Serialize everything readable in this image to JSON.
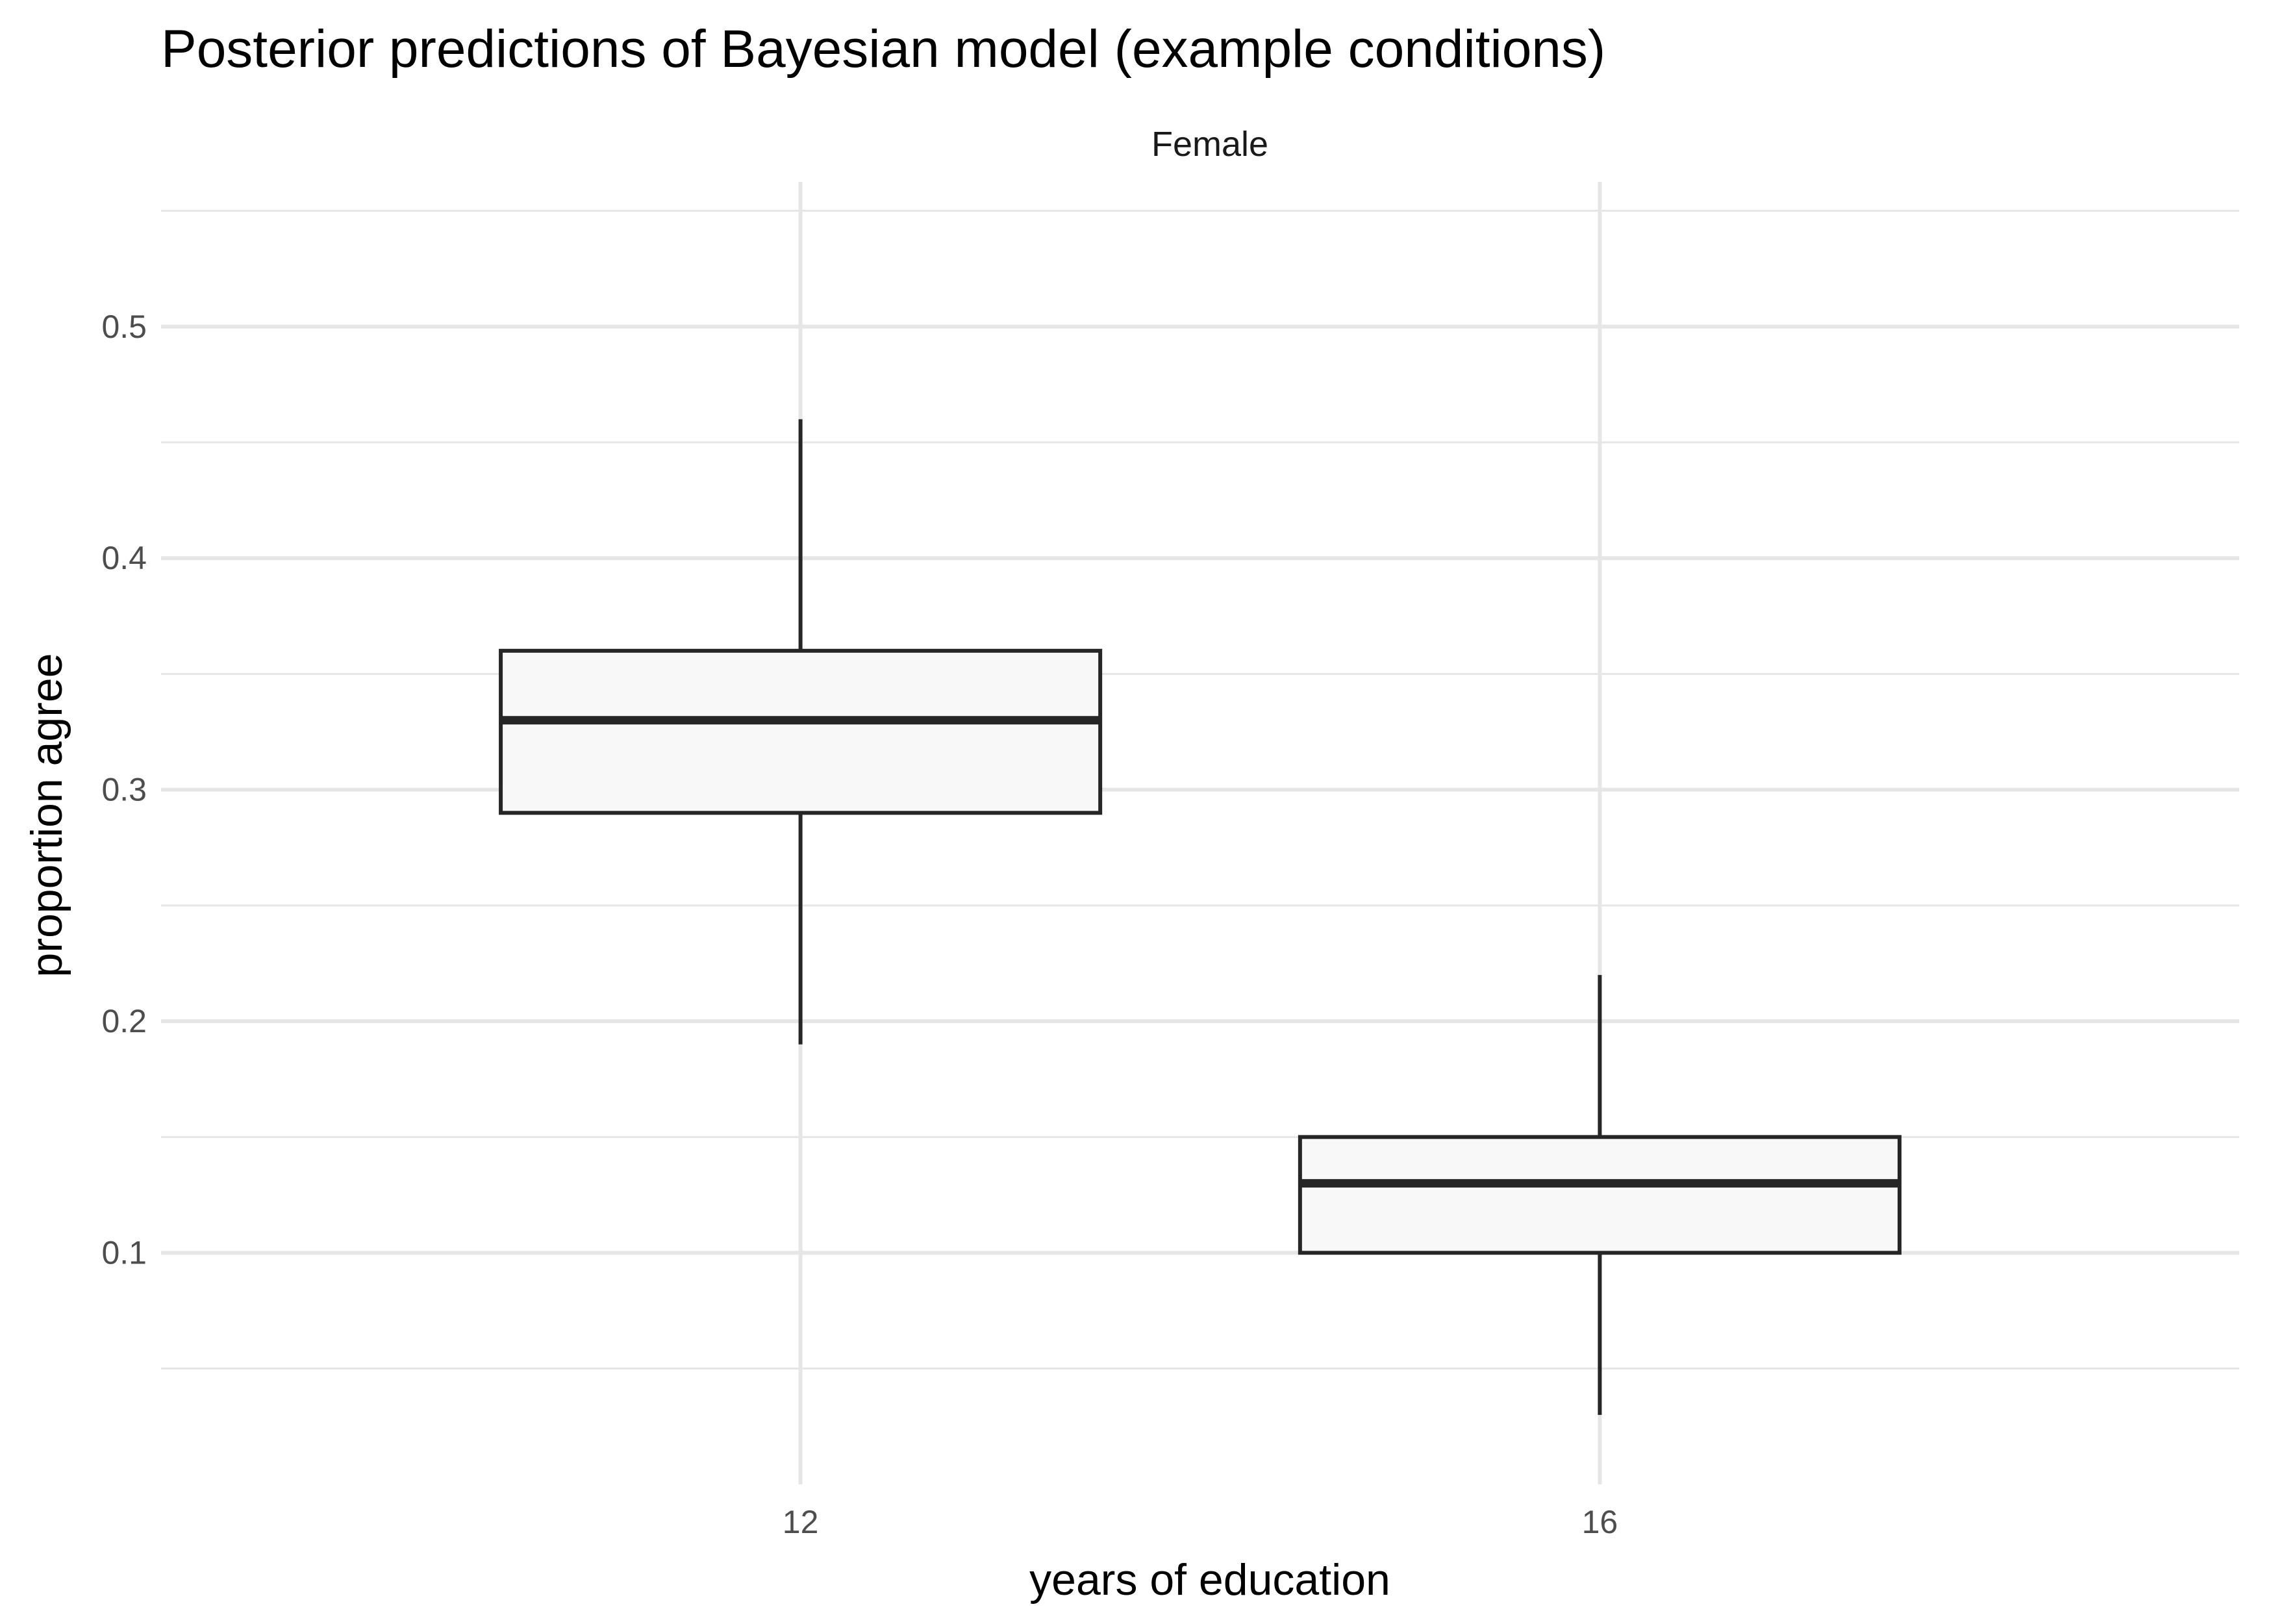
{
  "chart_data": {
    "type": "boxplot",
    "title": "Posterior predictions of Bayesian model (example conditions)",
    "facet_label": "Female",
    "xlabel": "years of education",
    "ylabel": "proportion agree",
    "categories": [
      "12",
      "16"
    ],
    "boxes": [
      {
        "category": "12",
        "whisker_low": 0.19,
        "q1": 0.29,
        "median": 0.33,
        "q3": 0.36,
        "whisker_high": 0.46
      },
      {
        "category": "16",
        "whisker_low": 0.03,
        "q1": 0.1,
        "median": 0.13,
        "q3": 0.15,
        "whisker_high": 0.22
      }
    ],
    "ylim": [
      0,
      0.5625
    ],
    "yticks": [
      {
        "value": 0.1,
        "label": "0.1"
      },
      {
        "value": 0.2,
        "label": "0.2"
      },
      {
        "value": 0.3,
        "label": "0.3"
      },
      {
        "value": 0.4,
        "label": "0.4"
      },
      {
        "value": 0.5,
        "label": "0.5"
      }
    ],
    "grid": true,
    "colors": {
      "box_fill": "#f8f8f8",
      "box_stroke": "#262626",
      "grid": "#e6e6e6"
    }
  }
}
